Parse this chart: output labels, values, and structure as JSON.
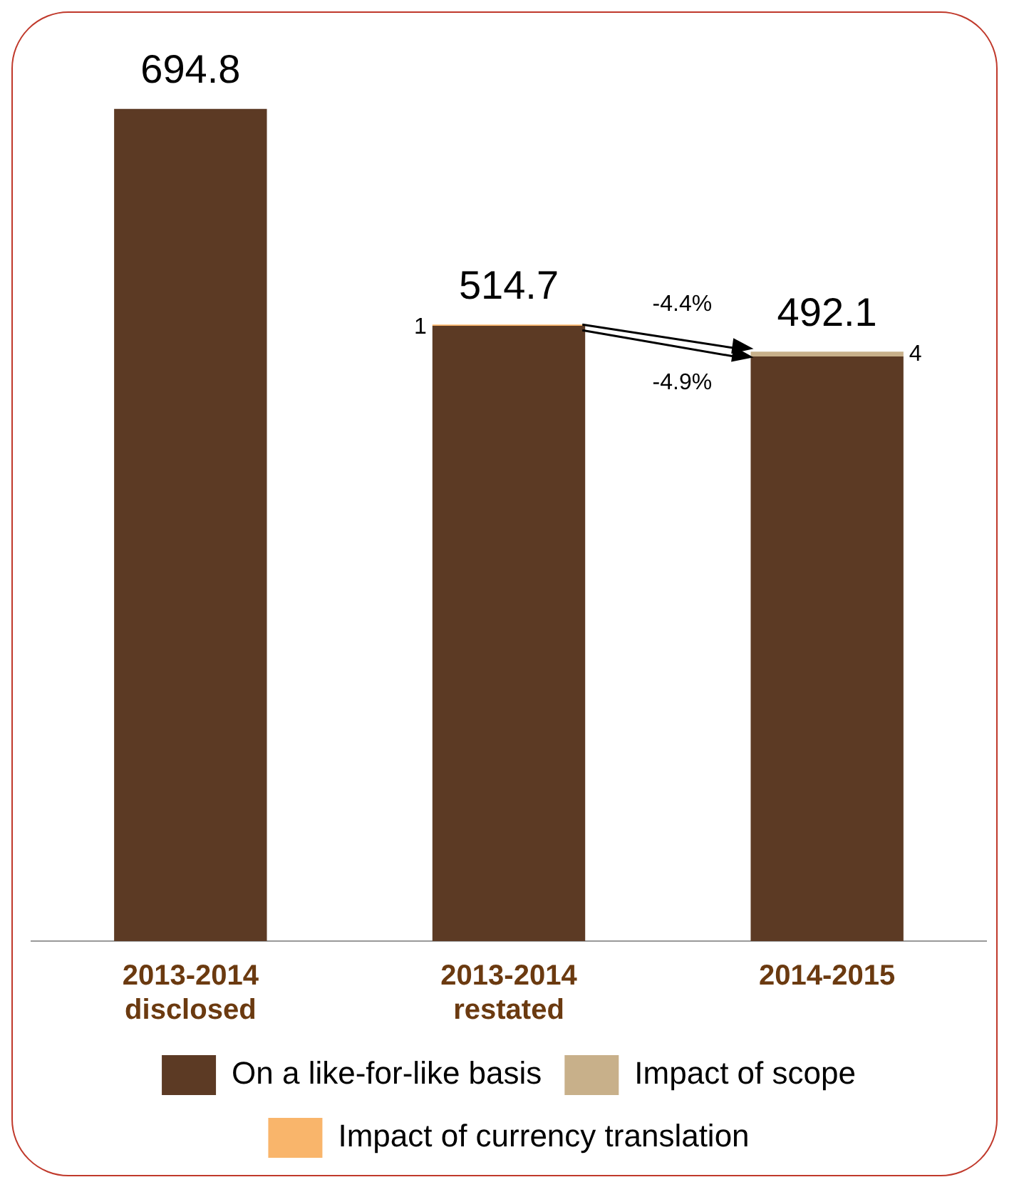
{
  "chart_data": {
    "type": "bar",
    "stacked": true,
    "categories": [
      "2013-2014 disclosed",
      "2013-2014 restated",
      "2014-2015"
    ],
    "series": [
      {
        "name": "On a like-for-like basis",
        "color": "#5c3a24",
        "values": [
          694.8,
          513.7,
          488.1
        ]
      },
      {
        "name": "Impact of scope",
        "color": "#c8b08a",
        "values": [
          null,
          null,
          4
        ],
        "value_labels": [
          null,
          null,
          "4"
        ]
      },
      {
        "name": "Impact of currency translation",
        "color": "#f9b56b",
        "values": [
          null,
          1,
          null
        ],
        "value_labels": [
          null,
          "1",
          null
        ]
      }
    ],
    "totals": [
      "694.8",
      "514.7",
      "492.1"
    ],
    "annotations": [
      "-4.4%",
      "-4.9%"
    ],
    "legend": "bottom"
  }
}
